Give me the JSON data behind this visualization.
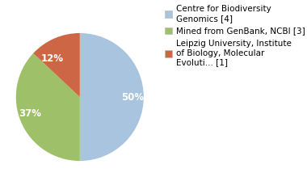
{
  "slices": [
    50,
    37,
    13
  ],
  "colors": [
    "#a8c4de",
    "#9dc068",
    "#cc6644"
  ],
  "pct_labels": [
    "50%",
    "37%",
    "12%"
  ],
  "legend_labels": [
    "Centre for Biodiversity\nGenomics [4]",
    "Mined from GenBank, NCBI [3]",
    "Leipzig University, Institute\nof Biology, Molecular\nEvoluti... [1]"
  ],
  "startangle": 90,
  "label_fontsize": 8.5,
  "legend_fontsize": 7.5
}
